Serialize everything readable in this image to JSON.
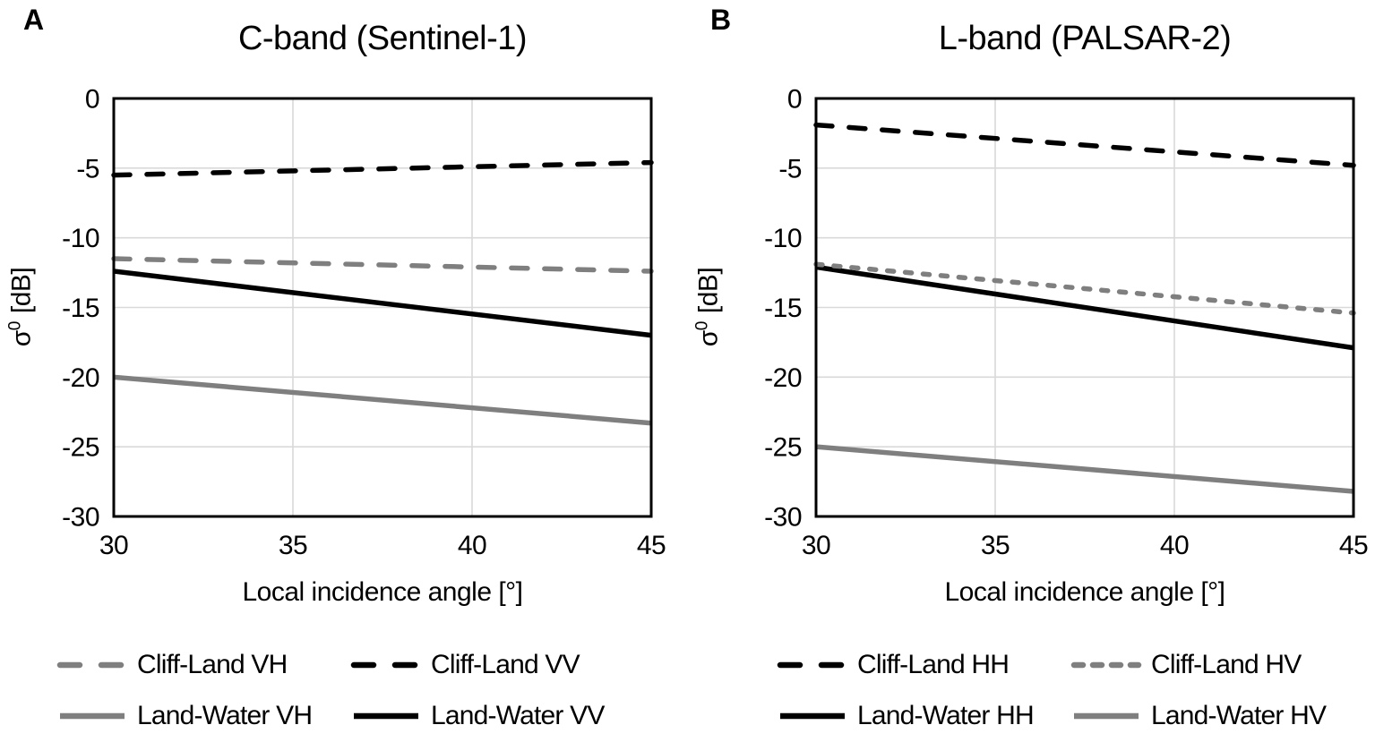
{
  "panels": [
    {
      "label": "A"
    },
    {
      "label": "B"
    }
  ],
  "y_axis": {
    "symbol": "σ",
    "superscript": "0",
    "unit": "[dB]"
  },
  "colors": {
    "black": "#000000",
    "gray": "#7f7f7f",
    "gridline": "#d9d9d9",
    "border": "#000000",
    "text": "#000000"
  },
  "chart_data": [
    {
      "type": "line",
      "title": "C-band (Sentinel-1)",
      "xlabel": "Local incidence angle [°]",
      "ylabel": "σ0 [dB]",
      "xlim": [
        30,
        45
      ],
      "ylim": [
        -30,
        0
      ],
      "x_ticks": [
        30,
        35,
        40,
        45
      ],
      "x_tick_labels": [
        "30",
        "35",
        "40",
        "45"
      ],
      "y_ticks": [
        0,
        -5,
        -10,
        -15,
        -20,
        -25,
        -30
      ],
      "y_tick_labels": [
        "0",
        "-5",
        "-10",
        "-15",
        "-20",
        "-25",
        "-30"
      ],
      "grid": true,
      "legend_position": "bottom",
      "x": [
        30,
        45
      ],
      "series": [
        {
          "name": "Cliff-Land VH",
          "color": "#7f7f7f",
          "style": "dashed",
          "values": [
            -11.5,
            -12.4
          ]
        },
        {
          "name": "Cliff-Land VV",
          "color": "#000000",
          "style": "dashed",
          "values": [
            -5.5,
            -4.6
          ]
        },
        {
          "name": "Land-Water VH",
          "color": "#7f7f7f",
          "style": "solid",
          "values": [
            -20.0,
            -23.3
          ]
        },
        {
          "name": "Land-Water VV",
          "color": "#000000",
          "style": "solid",
          "values": [
            -12.4,
            -17.0
          ]
        }
      ]
    },
    {
      "type": "line",
      "title": "L-band (PALSAR-2)",
      "xlabel": "Local incidence angle [°]",
      "ylabel": "σ0 [dB]",
      "xlim": [
        30,
        45
      ],
      "ylim": [
        -30,
        0
      ],
      "x_ticks": [
        30,
        35,
        40,
        45
      ],
      "x_tick_labels": [
        "30",
        "35",
        "40",
        "45"
      ],
      "y_ticks": [
        0,
        -5,
        -10,
        -15,
        -20,
        -25,
        -30
      ],
      "y_tick_labels": [
        "0",
        "-5",
        "-10",
        "-15",
        "-20",
        "-25",
        "-30"
      ],
      "grid": true,
      "legend_position": "bottom",
      "x": [
        30,
        45
      ],
      "series": [
        {
          "name": "Cliff-Land HH",
          "color": "#000000",
          "style": "dashed",
          "values": [
            -1.9,
            -4.8
          ]
        },
        {
          "name": "Cliff-Land HV",
          "color": "#7f7f7f",
          "style": "dashed-short",
          "values": [
            -11.9,
            -15.4
          ]
        },
        {
          "name": "Land-Water HH",
          "color": "#000000",
          "style": "solid",
          "values": [
            -12.1,
            -17.9
          ]
        },
        {
          "name": "Land-Water HV",
          "color": "#7f7f7f",
          "style": "solid",
          "values": [
            -25.0,
            -28.2
          ]
        }
      ]
    }
  ]
}
